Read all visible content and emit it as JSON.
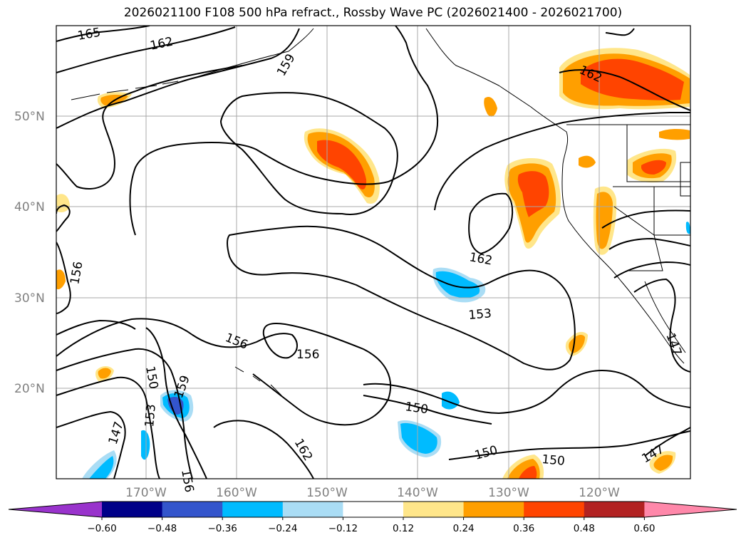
{
  "title": "2026021100 F108 500 hPa refract., Rossby Wave PC (2026021400 - 2026021700)",
  "lat_labels": [
    "50°N",
    "40°N",
    "30°N",
    "20°N"
  ],
  "lon_labels": [
    "170°W",
    "160°W",
    "150°W",
    "140°W",
    "130°W",
    "120°W"
  ],
  "colorbar": {
    "ticks": [
      "−0.60",
      "−0.48",
      "−0.36",
      "−0.24",
      "−0.12",
      "0.12",
      "0.24",
      "0.36",
      "0.48",
      "0.60"
    ],
    "colors": [
      "#9933cc",
      "#000088",
      "#3355cc",
      "#00bbff",
      "#aaddf5",
      "#ffffff",
      "#ffe68a",
      "#ff9f00",
      "#ff4400",
      "#b22222",
      "#ff88aa"
    ]
  },
  "contour_labels": [
    "165",
    "162",
    "159",
    "156",
    "162",
    "153",
    "156",
    "156",
    "150",
    "159",
    "153",
    "147",
    "150",
    "162",
    "150",
    "150",
    "147",
    "147",
    "156",
    "162"
  ],
  "colors": {
    "grid": "#a9a9a9",
    "contour": "#000000",
    "coast": "#000000",
    "tick_text": "#808080"
  }
}
